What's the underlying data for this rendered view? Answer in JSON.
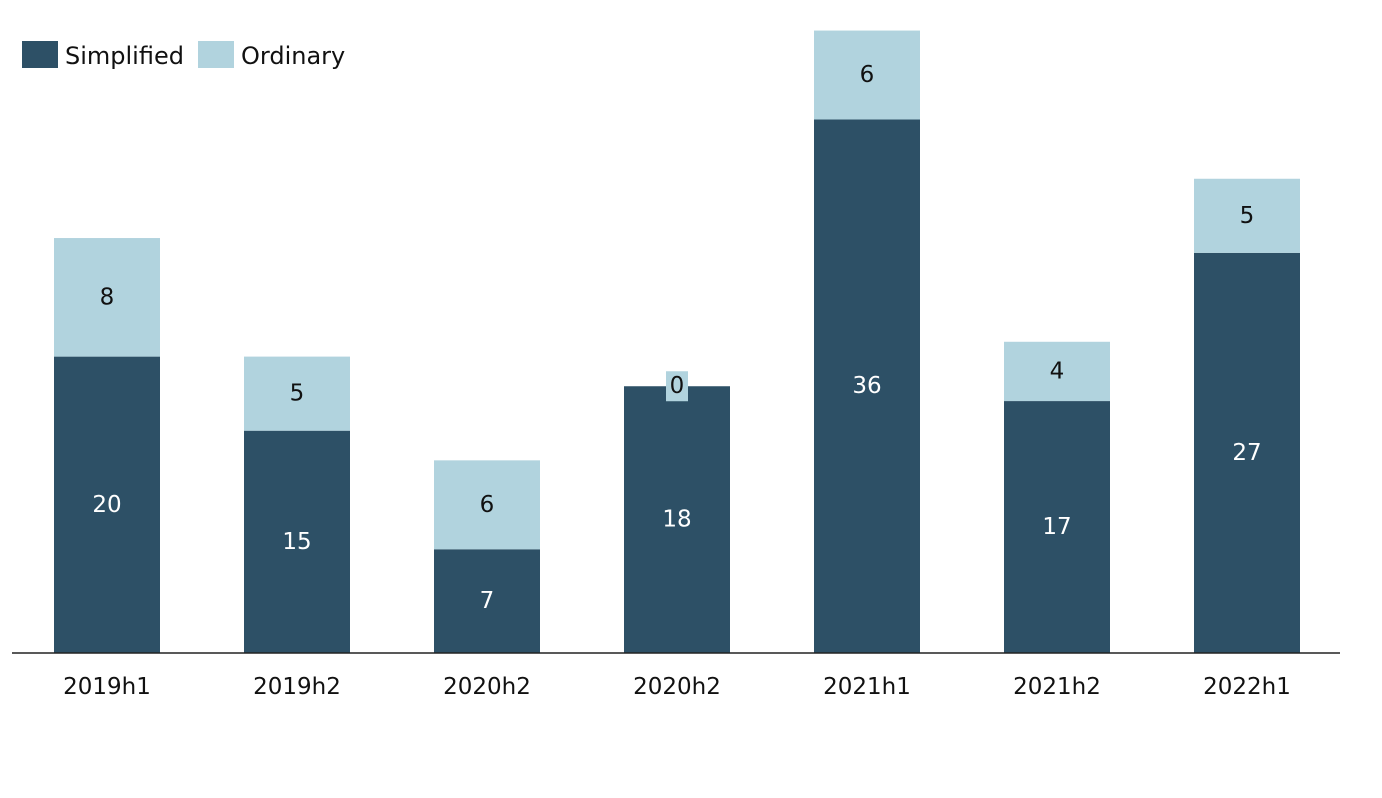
{
  "chart_data": {
    "type": "bar",
    "stacked": true,
    "categories": [
      "2019h1",
      "2019h2",
      "2020h2",
      "2020h2",
      "2021h1",
      "2021h2",
      "2022h1"
    ],
    "series": [
      {
        "name": "Simplified",
        "values": [
          20,
          15,
          7,
          18,
          36,
          17,
          27
        ],
        "color": "#2d5066"
      },
      {
        "name": "Ordinary",
        "values": [
          8,
          5,
          6,
          0,
          6,
          4,
          5
        ],
        "color": "#b1d3de"
      }
    ],
    "ylim": [
      0,
      42
    ],
    "grid": false,
    "legend_position": "top-left",
    "data_labels": true
  }
}
